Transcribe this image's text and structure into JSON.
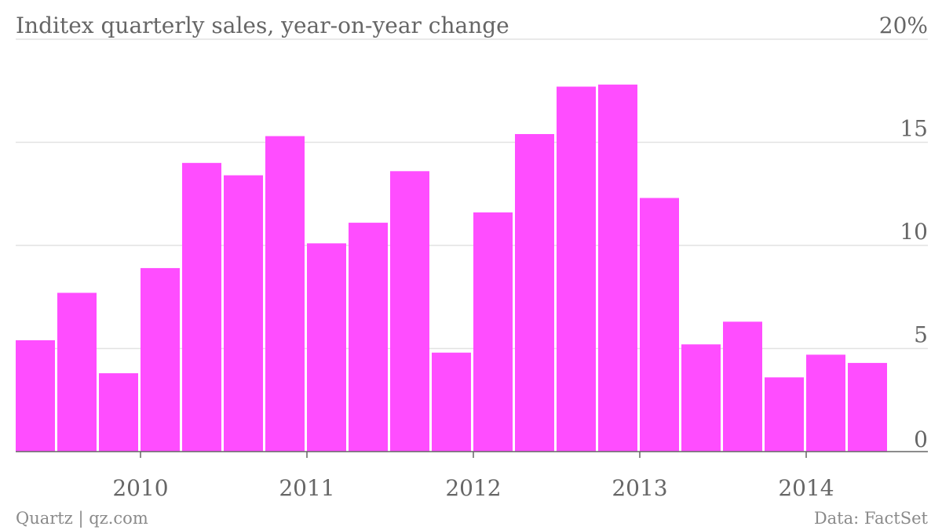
{
  "title": "Inditex quarterly sales, year-on-year change",
  "footer": {
    "source_left": "Quartz | qz.com",
    "source_right": "Data: FactSet"
  },
  "chart_data": {
    "type": "bar",
    "title": "Inditex quarterly sales, year-on-year change",
    "xlabel": "",
    "ylabel": "",
    "ylim": [
      0,
      20
    ],
    "yticks": [
      0,
      5,
      10,
      15,
      20
    ],
    "ytick_labels": [
      "0",
      "5",
      "10",
      "15",
      "20%"
    ],
    "x_start_year": 2009.25,
    "quarters_per_year": 4,
    "xticks": [
      2010,
      2011,
      2012,
      2013,
      2014
    ],
    "xtick_labels": [
      "2010",
      "2011",
      "2012",
      "2013",
      "2014"
    ],
    "values": [
      5.4,
      7.7,
      3.8,
      8.9,
      14.0,
      13.4,
      15.3,
      10.1,
      11.1,
      13.6,
      4.8,
      11.6,
      15.4,
      17.7,
      17.8,
      12.3,
      5.2,
      6.3,
      3.6,
      4.7,
      4.3
    ],
    "color": "#ff4dff",
    "grid": true,
    "legend": "none"
  }
}
